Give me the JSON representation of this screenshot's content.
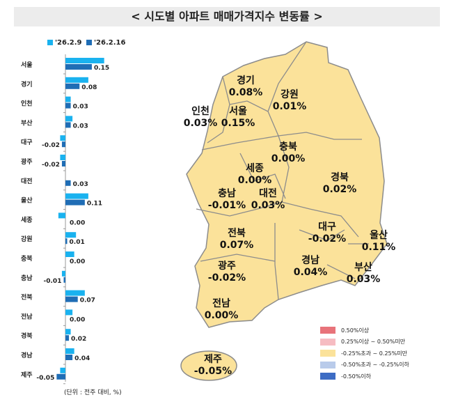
{
  "title": "< 시도별 아파트 매매가격지수 변동률 >",
  "unit_note": "(단위 : 전주 대비, %)",
  "colors": {
    "prev": "#1ab2ef",
    "curr": "#1f6db5",
    "map_fill": "#fbe29a"
  },
  "chart_data": {
    "type": "bar",
    "orientation": "horizontal",
    "categories": [
      "서울",
      "경기",
      "인천",
      "부산",
      "대구",
      "광주",
      "대전",
      "울산",
      "세종",
      "강원",
      "충북",
      "충남",
      "전북",
      "전남",
      "경북",
      "경남",
      "제주"
    ],
    "series": [
      {
        "name": "'26.2.9",
        "values": [
          0.22,
          0.13,
          0.03,
          0.04,
          -0.03,
          -0.03,
          0.0,
          0.13,
          -0.04,
          0.06,
          0.05,
          -0.02,
          0.11,
          0.04,
          0.03,
          0.05,
          -0.03
        ]
      },
      {
        "name": "'26.2.16",
        "values": [
          0.15,
          0.08,
          0.03,
          0.03,
          -0.02,
          -0.02,
          0.03,
          0.11,
          0.0,
          0.01,
          0.0,
          -0.01,
          0.07,
          0.0,
          0.02,
          0.04,
          -0.05
        ]
      }
    ],
    "data_labels": [
      "0.15",
      "0.08",
      "0.03",
      "0.03",
      "-0.02",
      "-0.02",
      "0.03",
      "0.11",
      "0.00",
      "0.01",
      "0.00",
      "-0.01",
      "0.07",
      "0.00",
      "0.02",
      "0.04",
      "-0.05"
    ],
    "legend": "top"
  },
  "map_regions": [
    {
      "name": "경기",
      "value": "0.08%"
    },
    {
      "name": "강원",
      "value": "0.01%"
    },
    {
      "name": "인천",
      "value": "0.03%"
    },
    {
      "name": "서울",
      "value": "0.15%"
    },
    {
      "name": "충북",
      "value": "0.00%"
    },
    {
      "name": "세종",
      "value": "0.00%"
    },
    {
      "name": "경북",
      "value": "0.02%"
    },
    {
      "name": "충남",
      "value": "-0.01%"
    },
    {
      "name": "대전",
      "value": "0.03%"
    },
    {
      "name": "전북",
      "value": "0.07%"
    },
    {
      "name": "대구",
      "value": "-0.02%"
    },
    {
      "name": "울산",
      "value": "0.11%"
    },
    {
      "name": "광주",
      "value": "-0.02%"
    },
    {
      "name": "경남",
      "value": "0.04%"
    },
    {
      "name": "부산",
      "value": "0.03%"
    },
    {
      "name": "전남",
      "value": "0.00%"
    },
    {
      "name": "제주",
      "value": "-0.05%"
    }
  ],
  "map_legend": [
    {
      "label": "0.50%이상",
      "color": "#e8737a"
    },
    {
      "label": "0.25%이상 ~ 0.50%미만",
      "color": "#f6bcc2"
    },
    {
      "label": "-0.25%초과 ~ 0.25%미만",
      "color": "#fbe29a"
    },
    {
      "label": "-0.50%초과 ~ -0.25%이하",
      "color": "#b9cbea"
    },
    {
      "label": "-0.50%이하",
      "color": "#3d6cc4"
    }
  ]
}
